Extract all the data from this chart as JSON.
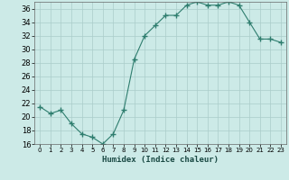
{
  "x": [
    0,
    1,
    2,
    3,
    4,
    5,
    6,
    7,
    8,
    9,
    10,
    11,
    12,
    13,
    14,
    15,
    16,
    17,
    18,
    19,
    20,
    21,
    22,
    23
  ],
  "y": [
    21.5,
    20.5,
    21.0,
    19.0,
    17.5,
    17.0,
    16.0,
    17.5,
    21.0,
    28.5,
    32.0,
    33.5,
    35.0,
    35.0,
    36.5,
    37.0,
    36.5,
    36.5,
    37.0,
    36.5,
    34.0,
    31.5,
    31.5,
    31.0
  ],
  "line_color": "#2e7d6e",
  "marker_color": "#2e7d6e",
  "bg_color": "#cceae7",
  "grid_color": "#aaccca",
  "xlabel": "Humidex (Indice chaleur)",
  "ylim": [
    16,
    37
  ],
  "xlim": [
    -0.5,
    23.5
  ],
  "yticks": [
    16,
    18,
    20,
    22,
    24,
    26,
    28,
    30,
    32,
    34,
    36
  ],
  "xticks": [
    0,
    1,
    2,
    3,
    4,
    5,
    6,
    7,
    8,
    9,
    10,
    11,
    12,
    13,
    14,
    15,
    16,
    17,
    18,
    19,
    20,
    21,
    22,
    23
  ],
  "xlabel_fontsize": 6.5,
  "xlabel_color": "#1a4a44",
  "ytick_fontsize": 6.0,
  "xtick_fontsize": 5.0
}
